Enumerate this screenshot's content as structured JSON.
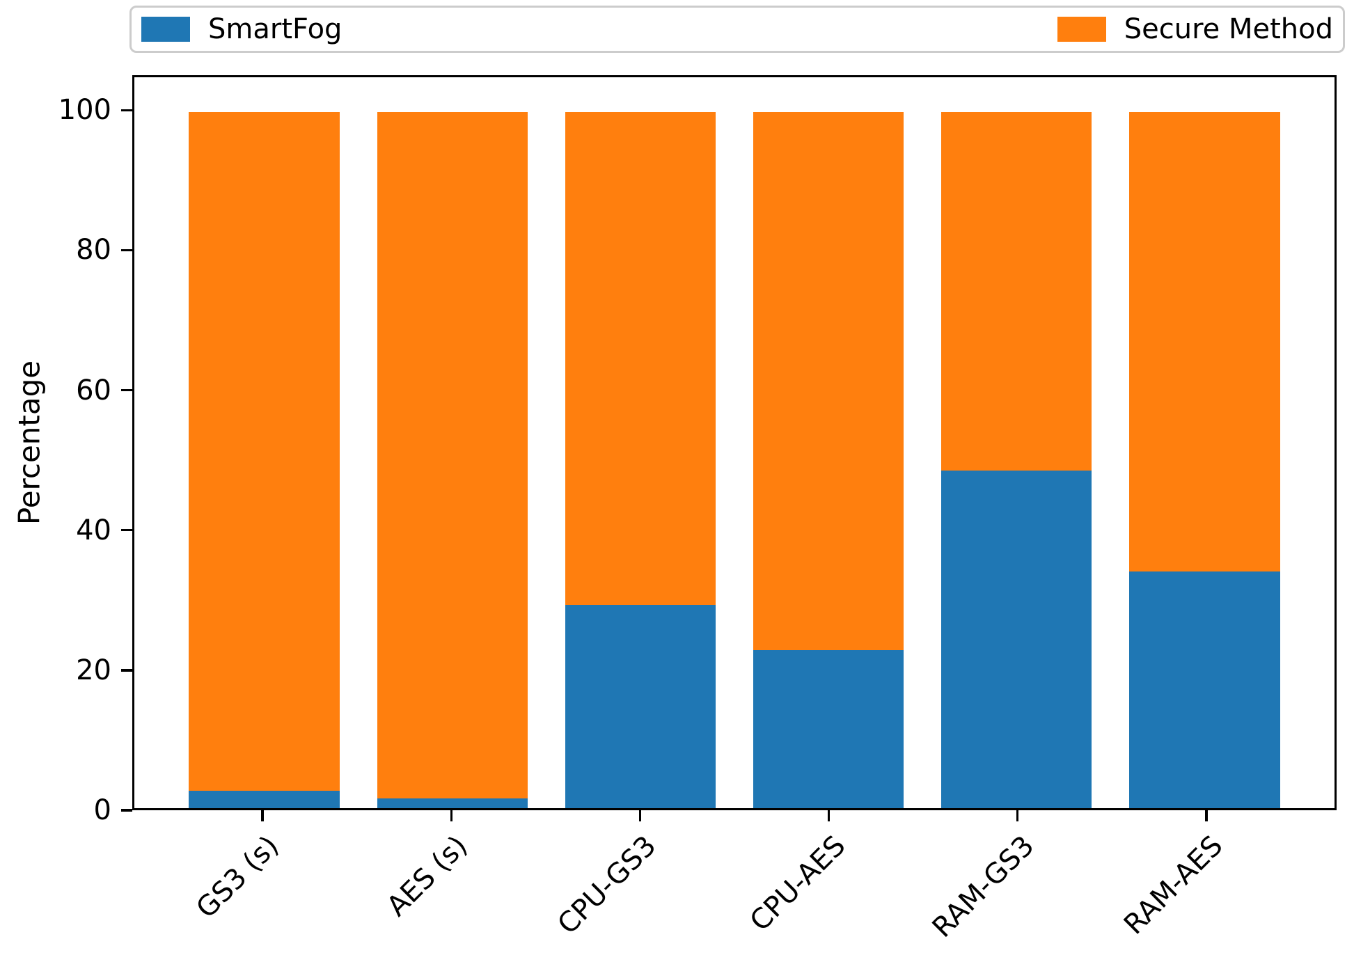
{
  "colors": {
    "smartfog_blue": "#1f77b4",
    "secure_orange": "#ff7f0e",
    "axis_black": "#000000",
    "legend_border": "#cccccc",
    "background": "#ffffff"
  },
  "legend": {
    "entries": [
      {
        "label": "SmartFog",
        "color": "#1f77b4"
      },
      {
        "label": "Secure Method",
        "color": "#ff7f0e"
      }
    ],
    "position": "top"
  },
  "chart_data": {
    "type": "bar",
    "stacked": true,
    "title": "",
    "xlabel": "",
    "ylabel": "Percentage",
    "categories": [
      "GS3 (s)",
      "AES (s)",
      "CPU-GS3",
      "CPU-AES",
      "RAM-GS3",
      "RAM-AES"
    ],
    "series": [
      {
        "name": "SmartFog",
        "color": "#1f77b4",
        "values": [
          2.5,
          1.4,
          29.2,
          22.7,
          48.5,
          34.0
        ]
      },
      {
        "name": "Secure Method",
        "color": "#ff7f0e",
        "values": [
          97.5,
          98.6,
          70.8,
          77.3,
          51.5,
          66.0
        ]
      }
    ],
    "ylim": [
      0,
      105
    ],
    "yticks": [
      0,
      20,
      40,
      60,
      80,
      100
    ],
    "grid": false,
    "legend_position": "top",
    "x_tick_rotation_deg": 45
  }
}
